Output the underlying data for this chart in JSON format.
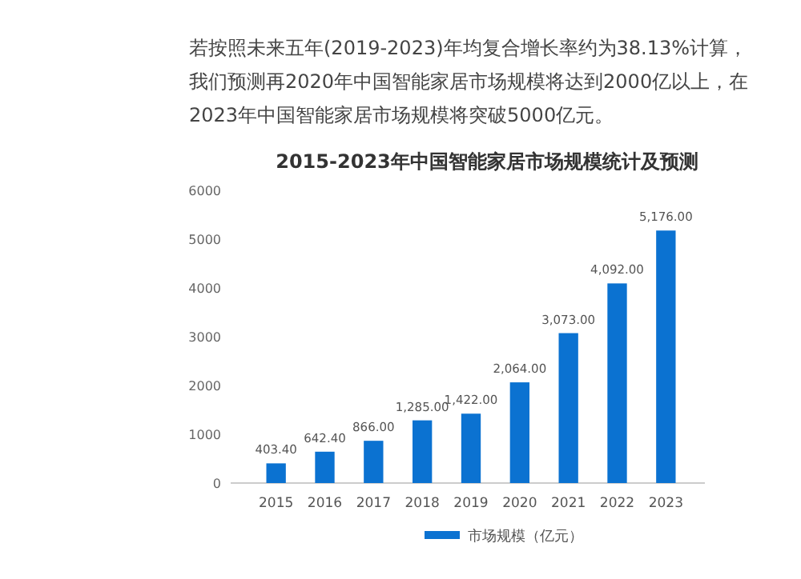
{
  "chart_data": {
    "type": "bar",
    "title": "2015-2023年中国智能家居市场规模统计及预测",
    "annotations": [
      "若按照未来五年(2019-2023)年均复合增长率约为38.13%计算，我们预测再2020年中国智能家居市场规模将达到2000亿以上，在2023年中国智能家居市场规模将突破5000亿元。"
    ],
    "categories": [
      "2015",
      "2016",
      "2017",
      "2018",
      "2019",
      "2020",
      "2021",
      "2022",
      "2023"
    ],
    "series": [
      {
        "name": "市场规模（亿元）",
        "color": "#0b72d1",
        "values": [
          403.4,
          642.4,
          866,
          1285,
          1422,
          2064,
          3073,
          4092,
          5176
        ]
      }
    ],
    "value_labels": [
      "403.40",
      "642.40",
      "866.00",
      "1,285.00",
      "1,422.00",
      "2,064.00",
      "3,073.00",
      "4,092.00",
      "5,176.00"
    ],
    "ylim": [
      0,
      6000
    ],
    "yticks": [
      0,
      1000,
      2000,
      3000,
      4000,
      5000,
      6000
    ],
    "grid": false,
    "legend": "bottom"
  }
}
